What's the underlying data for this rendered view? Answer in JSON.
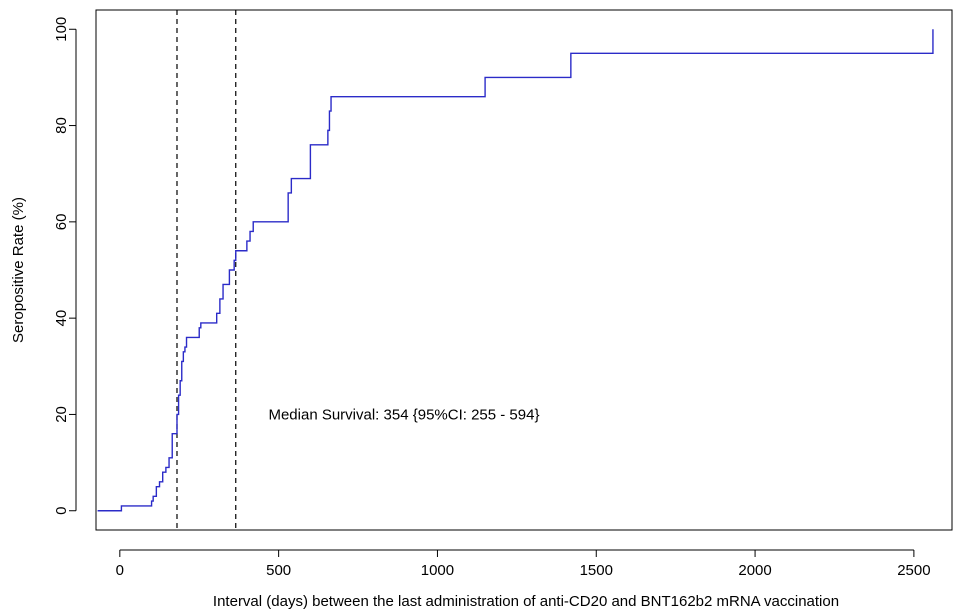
{
  "chart_data": {
    "type": "line",
    "title": "",
    "xlabel": "Interval (days) between the last administration of anti-CD20 and BNT162b2 mRNA vaccination",
    "ylabel": "Seropositive Rate (%)",
    "xlim": [
      -75,
      2620
    ],
    "ylim": [
      -4,
      104
    ],
    "x_ticks": [
      0,
      500,
      1000,
      1500,
      2000,
      2500
    ],
    "y_ticks": [
      0,
      20,
      40,
      60,
      80,
      100
    ],
    "grid": false,
    "legend": "none",
    "series": [
      {
        "step": true,
        "color": "#2b2bc8",
        "x": [
          -70,
          5,
          95,
          100,
          105,
          115,
          125,
          135,
          145,
          155,
          165,
          175,
          180,
          185,
          190,
          195,
          200,
          205,
          210,
          220,
          250,
          255,
          300,
          305,
          315,
          325,
          345,
          355,
          360,
          365,
          370,
          400,
          410,
          420,
          525,
          530,
          540,
          590,
          600,
          650,
          655,
          660,
          665,
          670,
          1145,
          1150,
          1415,
          1420,
          2555,
          2560
        ],
        "y": [
          0,
          1,
          1,
          2,
          3,
          5,
          6,
          8,
          9,
          11,
          16,
          16,
          20,
          24,
          27,
          31,
          33,
          34,
          36,
          36,
          38,
          39,
          39,
          41,
          44,
          47,
          50,
          50,
          52,
          54,
          54,
          56,
          58,
          60,
          60,
          66,
          69,
          69,
          76,
          76,
          79,
          83,
          86,
          86,
          86,
          90,
          90,
          95,
          95,
          100
        ]
      }
    ],
    "vlines": [
      180,
      365
    ],
    "annotations": [
      {
        "text": "Median Survival: 354 {95%CI: 255 - 594}",
        "x": 468,
        "y": 20
      }
    ]
  }
}
